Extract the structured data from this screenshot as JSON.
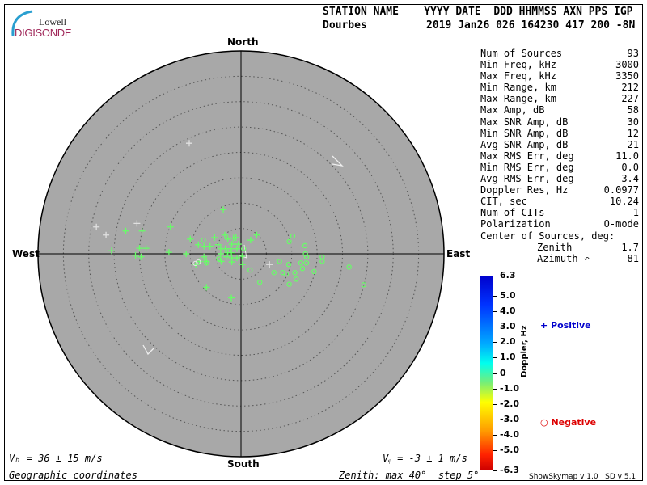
{
  "header": {
    "labels_line": "STATION NAME    YYYY DATE  DDD HHMMSS AXN PPS IGP",
    "station": "Dourbes",
    "values_line": "2019 Jan26 026 164230 417 200 -8N"
  },
  "logo": {
    "line1": "Lowell",
    "line2": "DIGISONDE"
  },
  "stats": [
    {
      "label": "Num of Sources",
      "value": "93"
    },
    {
      "label": "Min Freq, kHz",
      "value": "3000"
    },
    {
      "label": "Max Freq, kHz",
      "value": "3350"
    },
    {
      "label": "Min Range, km",
      "value": "212"
    },
    {
      "label": "Max Range, km",
      "value": "227"
    },
    {
      "label": "Max Amp, dB",
      "value": "58"
    },
    {
      "label": "Max SNR Amp, dB",
      "value": "30"
    },
    {
      "label": "Min SNR Amp, dB",
      "value": "12"
    },
    {
      "label": "Avg SNR Amp, dB",
      "value": "21"
    },
    {
      "label": "Max RMS Err, deg",
      "value": "11.0"
    },
    {
      "label": "Min RMS Err, deg",
      "value": "0.0"
    },
    {
      "label": "Avg RMS Err, deg",
      "value": "3.4"
    },
    {
      "label": "Doppler Res, Hz",
      "value": "0.0977"
    },
    {
      "label": "CIT, sec",
      "value": "10.24"
    },
    {
      "label": "Num of CITs",
      "value": "1"
    },
    {
      "label": "Polarization",
      "value": "O-mode"
    },
    {
      "label": "Center of Sources, deg:",
      "value": ""
    },
    {
      "label": "Zenith",
      "value": "1.7"
    },
    {
      "label": "Azimuth ↶",
      "value": "81"
    }
  ],
  "directions": {
    "north": "North",
    "south": "South",
    "east": "East",
    "west": "West"
  },
  "footer": {
    "vh": "Vₕ = 36 ± 15 m/s",
    "vz": "Vᵩ = -3 ± 1 m/s",
    "coords": "Geographic coordinates",
    "zenith": "Zenith: max 40°  step 5°",
    "version": "ShowSkymap v 1.0   SD v 5.1"
  },
  "colorbar": {
    "label": "Doppler, Hz",
    "ticks": [
      "6.3",
      "5.0",
      "4.0",
      "3.0",
      "2.0",
      "1.0",
      "0",
      "-1.0",
      "-2.0",
      "-3.0",
      "-4.0",
      "-5.0",
      "-6.3"
    ],
    "range": [
      -6.3,
      6.3
    ]
  },
  "legend": {
    "positive": "Positive",
    "negative": "Negative",
    "positive_color": "#0000cc",
    "negative_color": "#dd0000"
  },
  "colors": {
    "plot_bg": "#a8a8a8",
    "source_green": "#66ff66",
    "source_white": "#e0e0e0"
  },
  "chart_data": {
    "type": "scatter",
    "zenith_max_deg": 40,
    "zenith_step_deg": 5,
    "units": "degrees from zenith (east, north)",
    "positive_sources": [
      [
        -3.5,
        8.7
      ],
      [
        -22.7,
        4.5
      ],
      [
        -19.5,
        4.5
      ],
      [
        -13.9,
        5.3
      ],
      [
        -25.5,
        0.6
      ],
      [
        -20.0,
        1.1
      ],
      [
        -18.7,
        1.1
      ],
      [
        -20.8,
        -0.3
      ],
      [
        -19.7,
        -0.6
      ],
      [
        -14.2,
        0.3
      ],
      [
        -10.8,
        0
      ],
      [
        -10.0,
        2.9
      ],
      [
        -8.4,
        1.8
      ],
      [
        -7.3,
        1.5
      ],
      [
        -6.1,
        1.5
      ],
      [
        -5.2,
        3.2
      ],
      [
        -4.5,
        1.8
      ],
      [
        -3.2,
        3.7
      ],
      [
        -2.6,
        2.9
      ],
      [
        -1.5,
        3.1
      ],
      [
        -1.0,
        3.2
      ],
      [
        -1.8,
        1.9
      ],
      [
        -0.5,
        1.9
      ],
      [
        -4.0,
        1.0
      ],
      [
        -3.1,
        1.0
      ],
      [
        -2.1,
        1.0
      ],
      [
        -0.8,
        1.0
      ],
      [
        -2.6,
        0.2
      ],
      [
        -1.9,
        0.2
      ],
      [
        -4.0,
        0
      ],
      [
        -2.9,
        -0.6
      ],
      [
        -1.8,
        -0.8
      ],
      [
        -0.8,
        -0.8
      ],
      [
        -3.9,
        -1.5
      ],
      [
        -1.8,
        -1.6
      ],
      [
        -7.3,
        -0.6
      ],
      [
        -8.2,
        -1.5
      ],
      [
        -8.9,
        -2.1
      ],
      [
        -6.8,
        -1.5
      ],
      [
        0.3,
        -2.1
      ],
      [
        1.9,
        2.7
      ],
      [
        3.1,
        3.7
      ],
      [
        -6.8,
        -6.6
      ],
      [
        -1.9,
        -8.7
      ],
      [
        0.2,
        -0.5
      ]
    ],
    "positive_sources_faint": [
      [
        -28.5,
        5.3
      ],
      [
        -26.6,
        3.7
      ],
      [
        -20.5,
        6.0
      ],
      [
        5.6,
        -2.1
      ],
      [
        -10.2,
        21.8
      ]
    ],
    "negative_sources": [
      [
        -7.4,
        2.7
      ],
      [
        -6.8,
        -1.8
      ],
      [
        -4.4,
        -1.0
      ],
      [
        0.5,
        1.0
      ],
      [
        1.8,
        -3.2
      ],
      [
        3.7,
        -5.6
      ],
      [
        7.6,
        -1.5
      ],
      [
        6.5,
        -3.7
      ],
      [
        8.2,
        -3.7
      ],
      [
        8.9,
        -4.0
      ],
      [
        9.4,
        -2.1
      ],
      [
        9.5,
        2.4
      ],
      [
        10.2,
        3.5
      ],
      [
        10.6,
        -3.7
      ],
      [
        10.9,
        -5.0
      ],
      [
        9.5,
        -6.0
      ],
      [
        11.8,
        -1.8
      ],
      [
        12.1,
        -2.9
      ],
      [
        12.6,
        1.6
      ],
      [
        12.7,
        0
      ],
      [
        12.9,
        -0.6
      ],
      [
        12.9,
        -1.8
      ],
      [
        14.4,
        -3.5
      ],
      [
        16.0,
        -0.6
      ],
      [
        16.0,
        -1.5
      ],
      [
        21.3,
        -2.6
      ],
      [
        24.2,
        -6.1
      ]
    ],
    "negative_sources_faint": [
      [
        -9.0,
        -1.9
      ],
      [
        -8.4,
        -1.6
      ]
    ]
  }
}
